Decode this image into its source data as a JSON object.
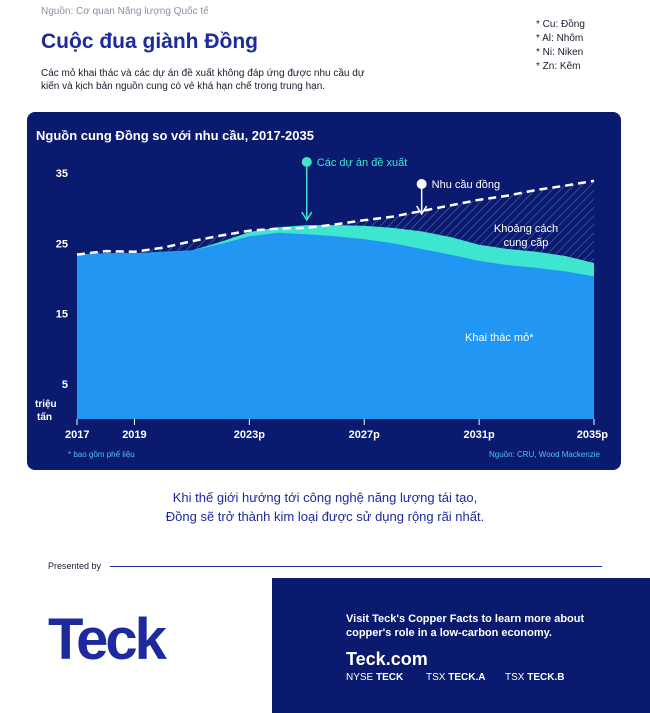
{
  "source": "Nguồn: Cơ quan Năng lượng Quốc tế",
  "legend": [
    "* Cu: Đồng",
    "* Al: Nhôm",
    "* Ni: Niken",
    "* Zn: Kẽm"
  ],
  "title": "Cuộc đua giành Đồng",
  "subtitle": "Các mỏ khai thác và các dự án đề xuất không đáp ứng được nhu cầu dự kiến và kịch bản nguồn cung có vẻ khá hạn chế trong trung hạn.",
  "chart_data": {
    "type": "area",
    "title": "Nguồn cung Đồng so với nhu cầu, 2017-2035",
    "ylabel": "triệu tấn",
    "yticks": [
      35,
      25,
      15,
      5
    ],
    "ylim": [
      0,
      38
    ],
    "xlim": [
      2017,
      2035
    ],
    "xticks": [
      "2017",
      "2019",
      "2023p",
      "2027p",
      "2031p",
      "2035p"
    ],
    "xtick_values": [
      2017,
      2019,
      2023,
      2027,
      2031,
      2035
    ],
    "x": [
      2017,
      2018,
      2019,
      2020,
      2021,
      2022,
      2023,
      2024,
      2025,
      2026,
      2027,
      2028,
      2029,
      2030,
      2031,
      2032,
      2033,
      2034,
      2035
    ],
    "series": [
      {
        "name": "Khai thác mỏ*",
        "color": "#2196f3",
        "values": [
          23.4,
          23.6,
          23.6,
          23.8,
          24.0,
          24.9,
          26.0,
          26.5,
          26.3,
          26.0,
          25.6,
          25.0,
          24.2,
          23.4,
          22.5,
          21.9,
          21.5,
          21.0,
          20.3
        ]
      },
      {
        "name": "Các dự án đề xuất",
        "color": "#3ee6cf",
        "values": [
          23.4,
          23.6,
          23.6,
          23.8,
          24.0,
          25.2,
          26.6,
          27.3,
          27.6,
          27.6,
          27.5,
          27.2,
          26.7,
          25.9,
          24.8,
          24.2,
          23.8,
          23.2,
          22.2
        ]
      },
      {
        "name": "Nhu cầu đồng",
        "color": "#ffffff",
        "style": "dashed",
        "values": [
          23.4,
          23.9,
          23.8,
          24.4,
          25.3,
          26.1,
          26.8,
          27.1,
          27.2,
          27.7,
          28.3,
          28.8,
          29.6,
          30.4,
          31.2,
          31.8,
          32.6,
          33.2,
          33.9
        ]
      }
    ],
    "annotations": {
      "projects": "Các dự án đề xuất",
      "demand": "Nhu cầu đồng",
      "gap_line1": "Khoảng cách",
      "gap_line2": "cung cấp",
      "mining": "Khai thác mỏ*"
    },
    "footnote": "* bao gồm phế liệu",
    "credit": "Nguồn: CRU, Wood Mackenzie"
  },
  "tagline": [
    "Khi thế giới hướng tới công nghệ năng lượng tái tạo,",
    "Đồng sẽ trở thành kim loại được sử dụng rộng rãi nhất."
  ],
  "presented": "Presented by",
  "logo": "Teck",
  "promo": {
    "text": "Visit Teck's Copper Facts to learn more about copper's role in a low-carbon economy.",
    "link": "Teck.com",
    "tickers": [
      {
        "exchange": "NYSE",
        "symbol": "TECK"
      },
      {
        "exchange": "TSX",
        "symbol": "TECK.A"
      },
      {
        "exchange": "TSX",
        "symbol": "TECK.B"
      }
    ]
  },
  "colors": {
    "navy": "#0a1a6e",
    "blue": "#1d2a9e",
    "mine": "#2196f3",
    "projects": "#3ee6cf"
  }
}
